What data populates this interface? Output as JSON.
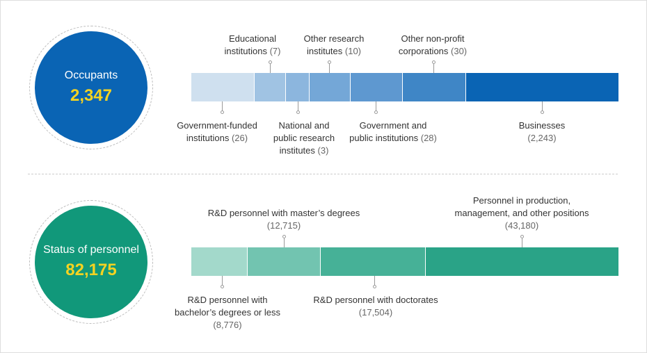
{
  "colors": {
    "number": "#f5d321",
    "occupants": [
      "#cfe0ef",
      "#a0c3e3",
      "#8cb6de",
      "#74a7d7",
      "#5e98d0",
      "#3f86c6",
      "#0a64b4"
    ],
    "personnel": [
      "#a3d9cb",
      "#72c4b0",
      "#46b197",
      "#2aa387",
      "#11987a"
    ],
    "occupants_circle": "#0a64b4",
    "personnel_circle": "#11987a"
  },
  "occupants": {
    "title": "Occupants",
    "total": "2,347",
    "segments": [
      {
        "label": "Government-funded institutions",
        "label_lines": [
          "Government-funded",
          "institutions"
        ],
        "count": "(26)",
        "value": 26,
        "position": "below"
      },
      {
        "label": "Educational institutions",
        "label_lines": [
          "Educational",
          "institutions"
        ],
        "count": "(7)",
        "value": 7,
        "position": "above"
      },
      {
        "label": "National and public research institutes",
        "label_lines": [
          "National and",
          "public research",
          "institutes"
        ],
        "count": "(3)",
        "value": 3,
        "position": "below"
      },
      {
        "label": "Other research institutes",
        "label_lines": [
          "Other research",
          "institutes"
        ],
        "count": "(10)",
        "value": 10,
        "position": "above"
      },
      {
        "label": "Government and public institutions",
        "label_lines": [
          "Government and",
          "public institutions"
        ],
        "count": "(28)",
        "value": 28,
        "position": "below"
      },
      {
        "label": "Other non-profit corporations",
        "label_lines": [
          "Other non-profit",
          "corporations"
        ],
        "count": "(30)",
        "value": 30,
        "position": "above"
      },
      {
        "label": "Businesses",
        "label_lines": [
          "Businesses"
        ],
        "count": "(2,243)",
        "value": 2243,
        "position": "below"
      }
    ]
  },
  "personnel": {
    "title": "Status of personnel",
    "total": "82,175",
    "segments": [
      {
        "label": "R&D personnel with bachelor’s degrees or less",
        "label_lines": [
          "R&D personnel with",
          "bachelor’s degrees or less"
        ],
        "count": "(8,776)",
        "value": 8776,
        "position": "below"
      },
      {
        "label": "R&D personnel with master’s degrees",
        "label_lines": [
          "R&D personnel with master’s degrees"
        ],
        "count": "(12,715)",
        "value": 12715,
        "position": "above"
      },
      {
        "label": "R&D personnel with doctorates",
        "label_lines": [
          "R&D personnel with doctorates"
        ],
        "count": "(17,504)",
        "value": 17504,
        "position": "below"
      },
      {
        "label": "Personnel in production, management, and other positions",
        "label_lines": [
          "Personnel in production,",
          "management, and other positions"
        ],
        "count": "(43,180)",
        "value": 43180,
        "position": "above"
      }
    ]
  },
  "chart_data": [
    {
      "type": "bar",
      "orientation": "horizontal stacked",
      "title": "Occupants",
      "total": 2347,
      "categories": [
        "Government-funded institutions",
        "Educational institutions",
        "National and public research institutes",
        "Other research institutes",
        "Government and public institutions",
        "Other non-profit corporations",
        "Businesses"
      ],
      "values": [
        26,
        7,
        3,
        10,
        28,
        30,
        2243
      ]
    },
    {
      "type": "bar",
      "orientation": "horizontal stacked",
      "title": "Status of personnel",
      "total": 82175,
      "categories": [
        "R&D personnel with bachelor’s degrees or less",
        "R&D personnel with master’s degrees",
        "R&D personnel with doctorates",
        "Personnel in production, management, and other positions"
      ],
      "values": [
        8776,
        12715,
        17504,
        43180
      ]
    }
  ]
}
